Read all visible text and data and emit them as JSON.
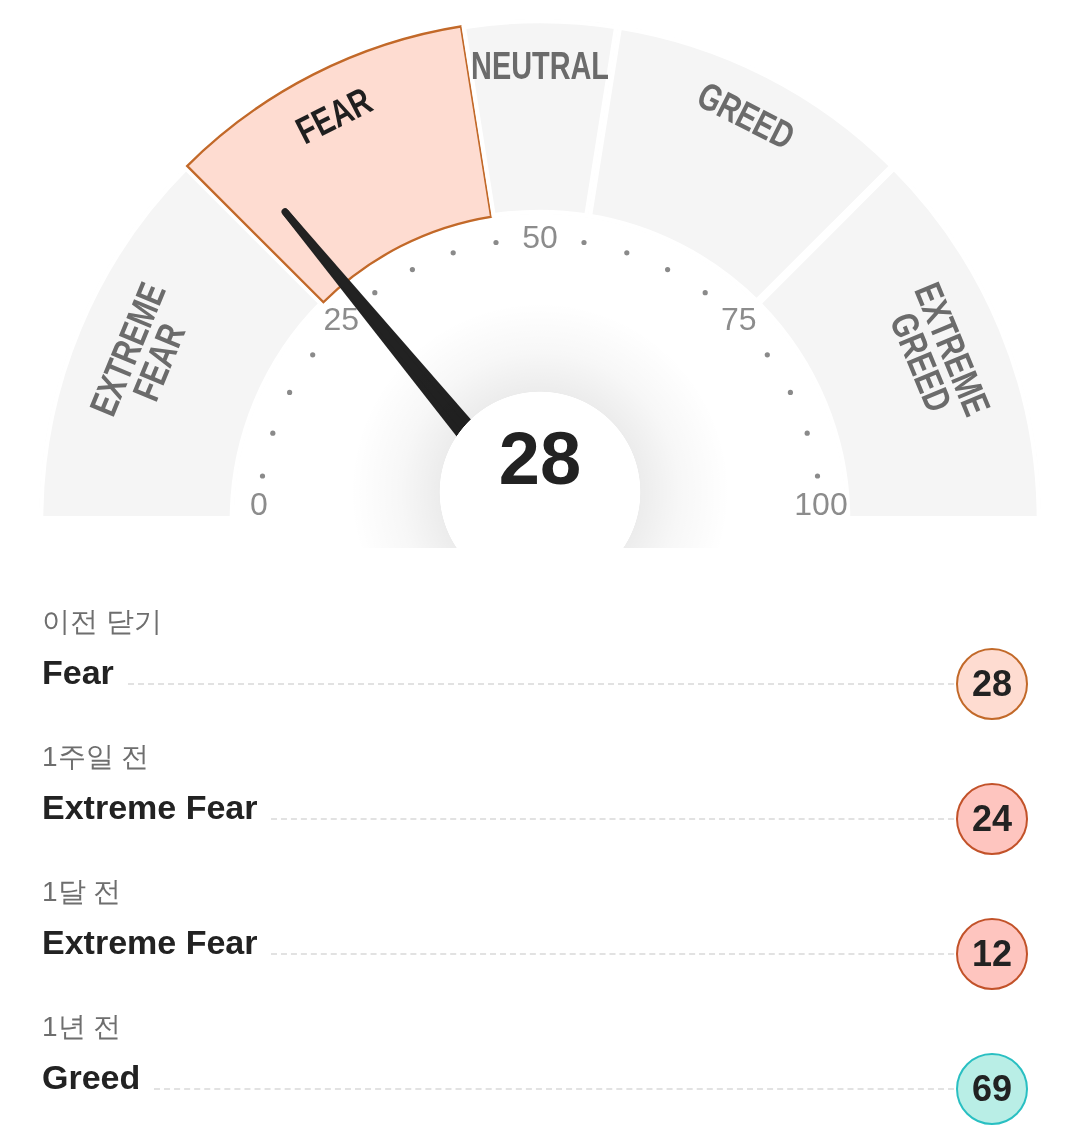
{
  "chart_data": [
    {
      "type": "donut",
      "categories": [
        "EXTREME FEAR",
        "FEAR",
        "NEUTRAL",
        "GREED",
        "EXTREME GREED"
      ],
      "values": [
        25,
        20,
        10,
        20,
        25
      ],
      "colors": [
        "#f5f5f5",
        "#fedcd1",
        "#f5f5f5",
        "#f5f5f5",
        "#f5f5f5"
      ],
      "needle": "FEAR",
      "annotations": [
        "28",
        "0",
        "25",
        "50",
        "75",
        "100"
      ]
    },
    {
      "type": "other",
      "categories": [
        "이전 닫기",
        "1주일 전",
        "1달 전",
        "1년 전"
      ],
      "values": [
        28,
        24,
        12,
        69
      ],
      "colors": [
        "#fedcd1",
        "#fec5bf",
        "#fec5bf",
        "#b9eee6"
      ],
      "data_labels": true,
      "annotations": [
        "Fear",
        "Extreme Fear",
        "Extreme Fear",
        "Greed"
      ]
    }
  ]
}
